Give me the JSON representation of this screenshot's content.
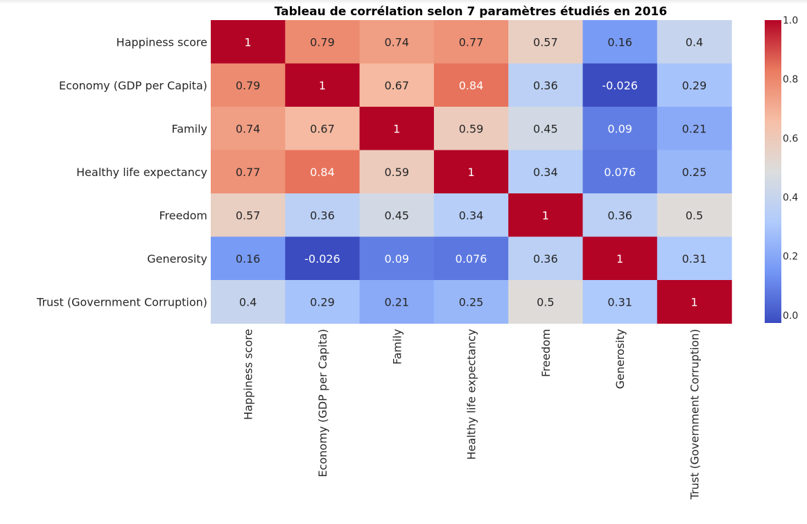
{
  "chart_data": {
    "type": "heatmap",
    "title": "Tableau de corrélation selon 7 paramètres étudiés en 2016",
    "rows": [
      "Happiness score",
      "Economy (GDP per Capita)",
      "Family",
      "Healthy life expectancy",
      "Freedom",
      "Generosity",
      "Trust (Government Corruption)"
    ],
    "columns": [
      "Happiness score",
      "Economy (GDP per Capita)",
      "Family",
      "Healthy life expectancy",
      "Freedom",
      "Generosity",
      "Trust (Government Corruption)"
    ],
    "values": [
      [
        1,
        0.79,
        0.74,
        0.77,
        0.57,
        0.16,
        0.4
      ],
      [
        0.79,
        1,
        0.67,
        0.84,
        0.36,
        -0.026,
        0.29
      ],
      [
        0.74,
        0.67,
        1,
        0.59,
        0.45,
        0.09,
        0.21
      ],
      [
        0.77,
        0.84,
        0.59,
        1,
        0.34,
        0.076,
        0.25
      ],
      [
        0.57,
        0.36,
        0.45,
        0.34,
        1,
        0.36,
        0.5
      ],
      [
        0.16,
        -0.026,
        0.09,
        0.076,
        0.36,
        1,
        0.31
      ],
      [
        0.4,
        0.29,
        0.21,
        0.25,
        0.5,
        0.31,
        1
      ]
    ],
    "annotations": [
      [
        "1",
        "0.79",
        "0.74",
        "0.77",
        "0.57",
        "0.16",
        "0.4"
      ],
      [
        "0.79",
        "1",
        "0.67",
        "0.84",
        "0.36",
        "-0.026",
        "0.29"
      ],
      [
        "0.74",
        "0.67",
        "1",
        "0.59",
        "0.45",
        "0.09",
        "0.21"
      ],
      [
        "0.77",
        "0.84",
        "0.59",
        "1",
        "0.34",
        "0.076",
        "0.25"
      ],
      [
        "0.57",
        "0.36",
        "0.45",
        "0.34",
        "1",
        "0.36",
        "0.5"
      ],
      [
        "0.16",
        "-0.026",
        "0.09",
        "0.076",
        "0.36",
        "1",
        "0.31"
      ],
      [
        "0.4",
        "0.29",
        "0.21",
        "0.25",
        "0.5",
        "0.31",
        "1"
      ]
    ],
    "colormap": "coolwarm",
    "colormap_stops": [
      "#3b4cc0",
      "#7396f5",
      "#b0cbfc",
      "#dcdddd",
      "#f6bfa6",
      "#ea7b60",
      "#b40426"
    ],
    "vmin": -0.026,
    "vmax": 1.0,
    "colorbar_ticks": [
      0.0,
      0.2,
      0.4,
      0.6,
      0.8,
      1.0
    ],
    "colorbar_tick_labels": [
      "0.0",
      "0.2",
      "0.4",
      "0.6",
      "0.8",
      "1.0"
    ],
    "legend": "colorbar right",
    "grid": false
  }
}
